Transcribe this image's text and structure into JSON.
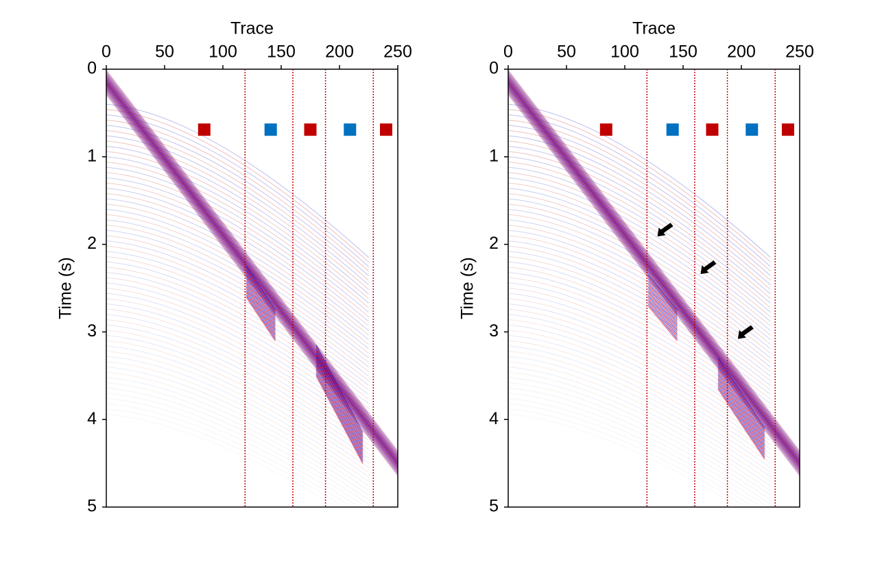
{
  "chart_data": [
    {
      "type": "seismic",
      "x_label": "Trace",
      "y_label": "Time (s)",
      "xlim": [
        0,
        250
      ],
      "xticks": [
        0,
        50,
        100,
        150,
        200,
        250
      ],
      "ylim": [
        0,
        5
      ],
      "yticks": [
        0,
        1,
        2,
        3,
        4,
        5
      ],
      "y_inverted": true,
      "x_axis_top": true,
      "boundaries": [
        119,
        160,
        188,
        229
      ],
      "boundary_color": "#c00000",
      "markers": {
        "time": 0.69,
        "traces": [
          84,
          141,
          175,
          209,
          240
        ],
        "colors": [
          "#c00000",
          "#0070c0",
          "#c00000",
          "#0070c0",
          "#c00000"
        ]
      }
    },
    {
      "type": "seismic",
      "x_label": "Trace",
      "y_label": "Time (s)",
      "xlim": [
        0,
        250
      ],
      "xticks": [
        0,
        50,
        100,
        150,
        200,
        250
      ],
      "ylim": [
        0,
        5
      ],
      "yticks": [
        0,
        1,
        2,
        3,
        4,
        5
      ],
      "y_inverted": true,
      "x_axis_top": true,
      "boundaries": [
        119,
        160,
        188,
        229
      ],
      "boundary_color": "#c00000",
      "markers": {
        "time": 0.69,
        "traces": [
          84,
          141,
          175,
          209,
          240
        ],
        "colors": [
          "#c00000",
          "#0070c0",
          "#c00000",
          "#0070c0",
          "#c00000"
        ]
      },
      "arrows": [
        {
          "trace": 128,
          "time": 1.91
        },
        {
          "trace": 165,
          "time": 2.34
        },
        {
          "trace": 197,
          "time": 3.08
        }
      ]
    }
  ]
}
